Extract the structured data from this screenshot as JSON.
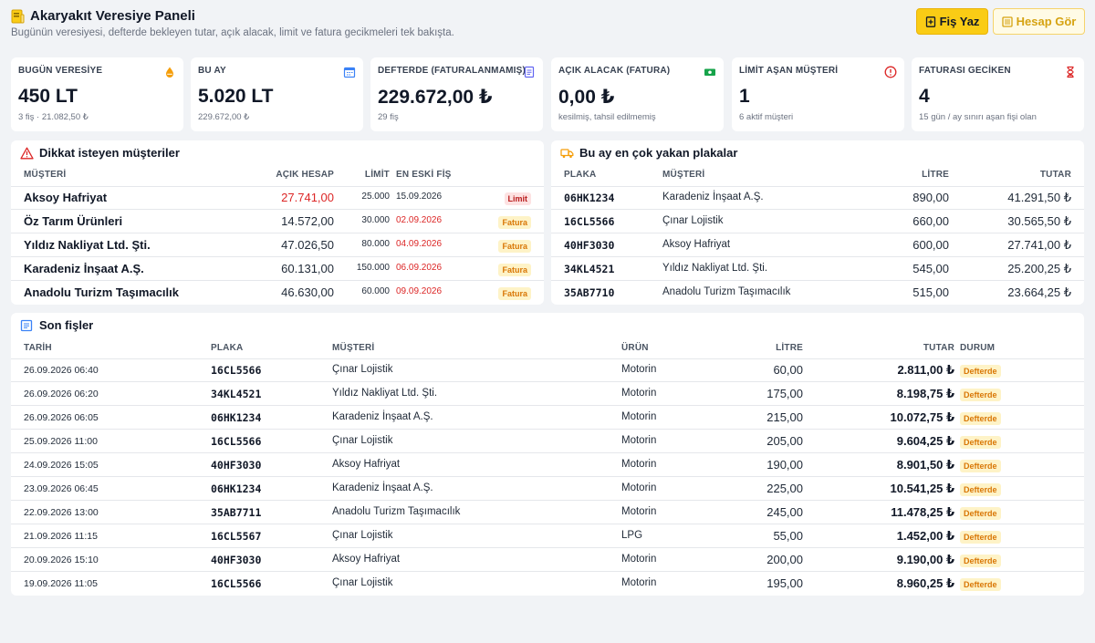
{
  "header": {
    "title": "Akaryakıt Veresiye Paneli",
    "subtitle": "Bugünün veresiyesi, defterde bekleyen tutar, açık alacak, limit ve fatura gecikmeleri tek bakışta.",
    "primary_button": "Fiş Yaz",
    "secondary_button": "Hesap Gör"
  },
  "kpis": [
    {
      "label": "BUGÜN VERESİYE",
      "value": "450 LT",
      "sub": "3 fiş · 21.082,50 ₺",
      "icon": "fuel-drop-icon"
    },
    {
      "label": "BU AY",
      "value": "5.020 LT",
      "sub": "229.672,00 ₺",
      "icon": "calendar-icon"
    },
    {
      "label": "DEFTERDE (FATURALANMAMIŞ)",
      "value": "229.672,00 ₺",
      "sub": "29 fiş",
      "icon": "document-icon"
    },
    {
      "label": "AÇIK ALACAK (FATURA)",
      "value": "0,00 ₺",
      "sub": "kesilmiş, tahsil edilmemiş",
      "icon": "cash-icon"
    },
    {
      "label": "LİMİT AŞAN MÜŞTERİ",
      "value": "1",
      "sub": "6 aktif müşteri",
      "icon": "alert-circle-icon"
    },
    {
      "label": "FATURASI GECİKEN",
      "value": "4",
      "sub": "15 gün / ay sınırı aşan fişi olan",
      "icon": "hourglass-icon"
    }
  ],
  "attention": {
    "title": "Dikkat isteyen müşteriler",
    "columns": [
      "MÜŞTERİ",
      "AÇIK HESAP",
      "LİMİT",
      "EN ESKİ FİŞ"
    ],
    "rows": [
      {
        "customer": "Aksoy Hafriyat",
        "open": "27.741,00",
        "limit": "25.000",
        "oldest": "15.09.2026",
        "badge": "Limit"
      },
      {
        "customer": "Öz Tarım Ürünleri",
        "open": "14.572,00",
        "limit": "30.000",
        "oldest": "02.09.2026",
        "badge": "Fatura"
      },
      {
        "customer": "Yıldız Nakliyat Ltd. Şti.",
        "open": "47.026,50",
        "limit": "80.000",
        "oldest": "04.09.2026",
        "badge": "Fatura"
      },
      {
        "customer": "Karadeniz İnşaat A.Ş.",
        "open": "60.131,00",
        "limit": "150.000",
        "oldest": "06.09.2026",
        "badge": "Fatura"
      },
      {
        "customer": "Anadolu Turizm Taşımacılık",
        "open": "46.630,00",
        "limit": "60.000",
        "oldest": "09.09.2026",
        "badge": "Fatura"
      }
    ]
  },
  "plates": {
    "title": "Bu ay en çok yakan plakalar",
    "columns": [
      "PLAKA",
      "MÜŞTERİ",
      "LİTRE",
      "TUTAR"
    ],
    "rows": [
      {
        "plate": "06HK1234",
        "customer": "Karadeniz İnşaat A.Ş.",
        "liters": "890,00",
        "amount": "41.291,50 ₺"
      },
      {
        "plate": "16CL5566",
        "customer": "Çınar Lojistik",
        "liters": "660,00",
        "amount": "30.565,50 ₺"
      },
      {
        "plate": "40HF3030",
        "customer": "Aksoy Hafriyat",
        "liters": "600,00",
        "amount": "27.741,00 ₺"
      },
      {
        "plate": "34KL4521",
        "customer": "Yıldız Nakliyat Ltd. Şti.",
        "liters": "545,00",
        "amount": "25.200,25 ₺"
      },
      {
        "plate": "35AB7710",
        "customer": "Anadolu Turizm Taşımacılık",
        "liters": "515,00",
        "amount": "23.664,25 ₺"
      }
    ]
  },
  "receipts": {
    "title": "Son fişler",
    "columns": [
      "TARİH",
      "PLAKA",
      "MÜŞTERİ",
      "ÜRÜN",
      "LİTRE",
      "TUTAR",
      "DURUM"
    ],
    "rows": [
      {
        "date": "26.09.2026 06:40",
        "plate": "16CL5566",
        "customer": "Çınar Lojistik",
        "product": "Motorin",
        "liters": "60,00",
        "amount": "2.811,00 ₺",
        "status": "Defterde"
      },
      {
        "date": "26.09.2026 06:20",
        "plate": "34KL4521",
        "customer": "Yıldız Nakliyat Ltd. Şti.",
        "product": "Motorin",
        "liters": "175,00",
        "amount": "8.198,75 ₺",
        "status": "Defterde"
      },
      {
        "date": "26.09.2026 06:05",
        "plate": "06HK1234",
        "customer": "Karadeniz İnşaat A.Ş.",
        "product": "Motorin",
        "liters": "215,00",
        "amount": "10.072,75 ₺",
        "status": "Defterde"
      },
      {
        "date": "25.09.2026 11:00",
        "plate": "16CL5566",
        "customer": "Çınar Lojistik",
        "product": "Motorin",
        "liters": "205,00",
        "amount": "9.604,25 ₺",
        "status": "Defterde"
      },
      {
        "date": "24.09.2026 15:05",
        "plate": "40HF3030",
        "customer": "Aksoy Hafriyat",
        "product": "Motorin",
        "liters": "190,00",
        "amount": "8.901,50 ₺",
        "status": "Defterde"
      },
      {
        "date": "23.09.2026 06:45",
        "plate": "06HK1234",
        "customer": "Karadeniz İnşaat A.Ş.",
        "product": "Motorin",
        "liters": "225,00",
        "amount": "10.541,25 ₺",
        "status": "Defterde"
      },
      {
        "date": "22.09.2026 13:00",
        "plate": "35AB7711",
        "customer": "Anadolu Turizm Taşımacılık",
        "product": "Motorin",
        "liters": "245,00",
        "amount": "11.478,25 ₺",
        "status": "Defterde"
      },
      {
        "date": "21.09.2026 11:15",
        "plate": "16CL5567",
        "customer": "Çınar Lojistik",
        "product": "LPG",
        "liters": "55,00",
        "amount": "1.452,00 ₺",
        "status": "Defterde"
      },
      {
        "date": "20.09.2026 15:10",
        "plate": "40HF3030",
        "customer": "Aksoy Hafriyat",
        "product": "Motorin",
        "liters": "200,00",
        "amount": "9.190,00 ₺",
        "status": "Defterde"
      },
      {
        "date": "19.09.2026 11:05",
        "plate": "16CL5566",
        "customer": "Çınar Lojistik",
        "product": "Motorin",
        "liters": "195,00",
        "amount": "8.960,25 ₺",
        "status": "Defterde"
      }
    ]
  },
  "colors": {
    "accent": "#facc15",
    "danger": "#dc2626",
    "warning": "#d97706"
  }
}
